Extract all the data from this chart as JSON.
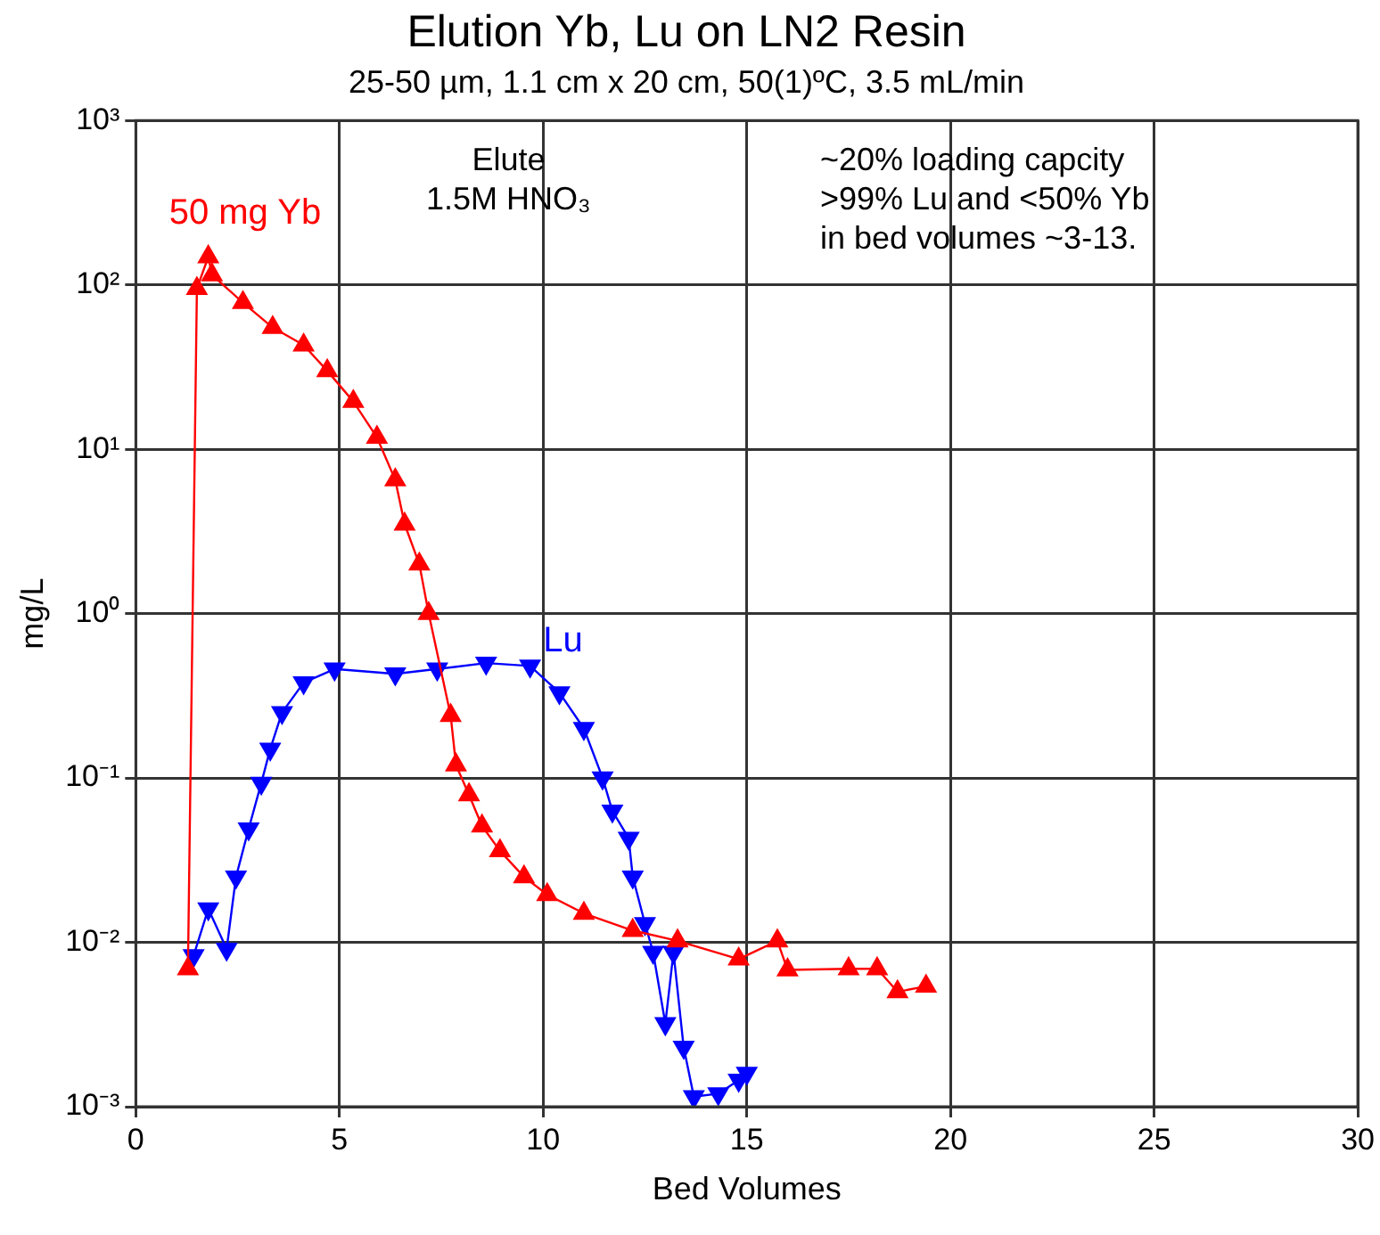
{
  "chart_data": {
    "type": "line",
    "title": "Elution Yb, Lu on LN2 Resin",
    "subtitle": "25-50 µm, 1.1 cm x 20 cm, 50(1)ºC, 3.5 mL/min",
    "xlabel": "Bed Volumes",
    "ylabel": "mg/L",
    "log": "y",
    "grid": true,
    "legend": false,
    "marker": "triangle",
    "line_style": "solid",
    "xlim": [
      0,
      30
    ],
    "xticks": [
      0,
      5,
      10,
      15,
      20,
      25,
      30
    ],
    "ylim": [
      0.001,
      1000
    ],
    "yticks": [
      {
        "value": 0.001,
        "label": "10⁻³"
      },
      {
        "value": 0.01,
        "label": "10⁻²"
      },
      {
        "value": 0.1,
        "label": "10⁻¹"
      },
      {
        "value": 1,
        "label": "10⁰"
      },
      {
        "value": 10,
        "label": "10¹"
      },
      {
        "value": 100,
        "label": "10²"
      },
      {
        "value": 1000,
        "label": "10³"
      }
    ],
    "annotations": [
      "Elute\n1.5M HNO₃",
      "~20% loading capcity\n>99% Lu and <50% Yb\nin bed volumes ~3-13."
    ],
    "series": [
      {
        "name": "50 mg Yb",
        "color": "#ff0000",
        "x": [
          1.28,
          1.5,
          1.78,
          1.87,
          2.63,
          3.36,
          4.12,
          4.7,
          5.34,
          5.92,
          6.37,
          6.6,
          6.96,
          7.19,
          7.73,
          7.86,
          8.18,
          8.5,
          8.94,
          9.53,
          10.1,
          11.0,
          12.2,
          13.3,
          14.8,
          15.75,
          16.0,
          17.5,
          18.2,
          18.7,
          19.4
        ],
        "values": [
          0.0069,
          95,
          148,
          115,
          78,
          55,
          43,
          30,
          19.5,
          11.8,
          6.5,
          3.5,
          2.0,
          1.0,
          0.24,
          0.12,
          0.079,
          0.051,
          0.036,
          0.025,
          0.0195,
          0.015,
          0.0118,
          0.0102,
          0.0079,
          0.0102,
          0.0068,
          0.0069,
          0.0069,
          0.005,
          0.0054
        ]
      },
      {
        "name": "Lu",
        "color": "#0000ff",
        "x": [
          1.42,
          1.78,
          2.23,
          2.46,
          2.77,
          3.08,
          3.3,
          3.59,
          4.12,
          4.88,
          6.37,
          7.4,
          8.6,
          9.68,
          10.4,
          11.0,
          11.46,
          11.7,
          12.1,
          12.2,
          12.5,
          12.7,
          13.0,
          13.2,
          13.45,
          13.7,
          14.3,
          14.8,
          15.0
        ],
        "values": [
          0.0083,
          0.016,
          0.0091,
          0.025,
          0.049,
          0.093,
          0.15,
          0.25,
          0.38,
          0.46,
          0.43,
          0.46,
          0.5,
          0.48,
          0.33,
          0.2,
          0.1,
          0.063,
          0.043,
          0.025,
          0.013,
          0.0087,
          0.0032,
          0.0087,
          0.0023,
          0.00115,
          0.0012,
          0.00145,
          0.0016
        ]
      }
    ]
  }
}
